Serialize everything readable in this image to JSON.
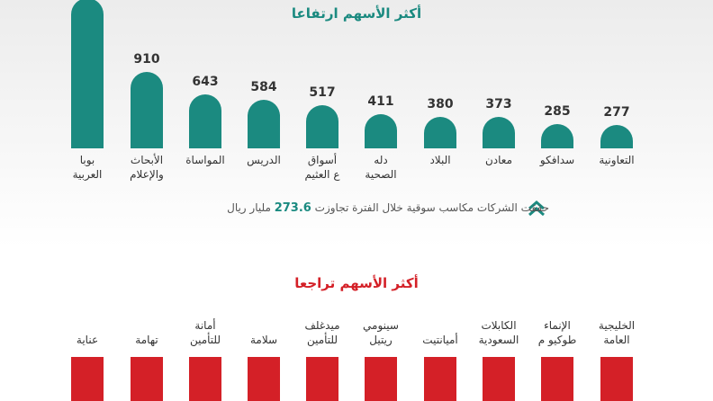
{
  "chart_data": [
    {
      "type": "bar",
      "title": "أكثر الأسهم ارتفاعا",
      "color": "#1b8a80",
      "categories": [
        "بوبا\nالعربية",
        "الأبحاث\nوالإعلام",
        "المواساة",
        "الدريس",
        "أسواق\nع العثيم",
        "دله\nالصحية",
        "البلاد",
        "معادن",
        "سدافكو",
        "التعاونية"
      ],
      "values": [
        1800,
        910,
        643,
        584,
        517,
        411,
        380,
        373,
        285,
        277
      ],
      "note_before": "حققت الشركات مكاسب سوقية خلال الفترة تجاوزت",
      "note_value": "273.6",
      "note_after": "مليار ريال"
    },
    {
      "type": "bar",
      "title": "أكثر الأسهم تراجعا",
      "color": "#d42027",
      "categories": [
        "عناية",
        "تهامة",
        "أمانة\nللتأمين",
        "سلامة",
        "ميدغلف\nللتأمين",
        "سينومي\nريتيل",
        "أميانتيت",
        "الكابلات\nالسعودية",
        "الإنماء\nطوكيو م",
        "الخليجية\nالعامة"
      ]
    }
  ]
}
